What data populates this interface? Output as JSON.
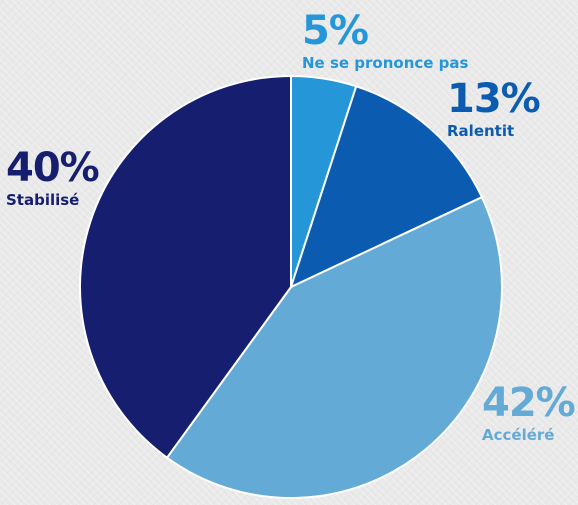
{
  "chart_data": {
    "type": "pie",
    "slices": [
      {
        "label": "Ne se prononce pas",
        "value": 5,
        "display": "5%",
        "color": "#2596d8"
      },
      {
        "label": "Ralentit",
        "value": 13,
        "display": "13%",
        "color": "#0b5cb0"
      },
      {
        "label": "Accéléré",
        "value": 42,
        "display": "42%",
        "color": "#63aad6"
      },
      {
        "label": "Stabilisé",
        "value": 40,
        "display": "40%",
        "color": "#161f6f"
      }
    ],
    "start_angle": "12 o'clock",
    "direction": "clockwise",
    "legend": "none",
    "slice_border_color": "#ffffff"
  }
}
